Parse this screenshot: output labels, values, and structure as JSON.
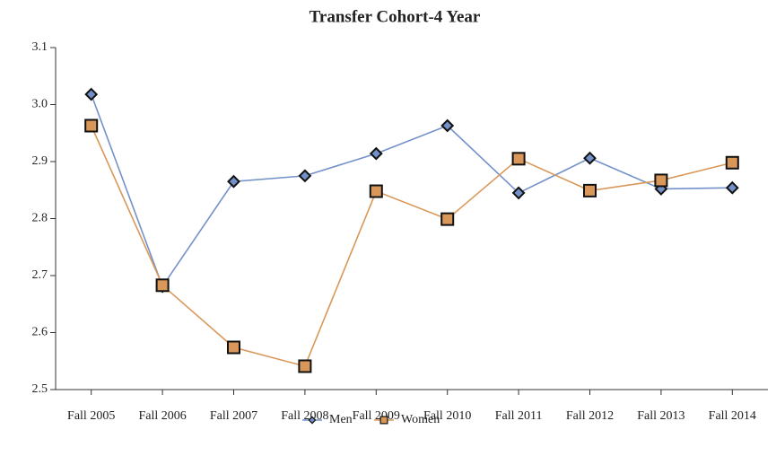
{
  "chart_data": {
    "type": "line",
    "title": "Transfer Cohort-4 Year",
    "categories": [
      "Fall 2005",
      "Fall 2006",
      "Fall 2007",
      "Fall 2008",
      "Fall 2009",
      "Fall 2010",
      "Fall 2011",
      "Fall 2012",
      "Fall 2013",
      "Fall 2014"
    ],
    "series": [
      {
        "name": "Men",
        "color": "#7391c9",
        "marker": "diamond",
        "values": [
          3.018,
          2.681,
          2.865,
          2.875,
          2.914,
          2.963,
          2.845,
          2.906,
          2.852,
          2.854
        ]
      },
      {
        "name": "Women",
        "color": "#d9985a",
        "marker": "square",
        "values": [
          2.963,
          2.683,
          2.574,
          2.541,
          2.848,
          2.799,
          2.905,
          2.849,
          2.867,
          2.898
        ]
      }
    ],
    "ylim": [
      2.5,
      3.1
    ],
    "yticks": [
      2.5,
      2.6,
      2.7,
      2.8,
      2.9,
      {
        "value": 3,
        "label": "3.0"
      },
      3.1
    ],
    "legend": "bottom"
  }
}
